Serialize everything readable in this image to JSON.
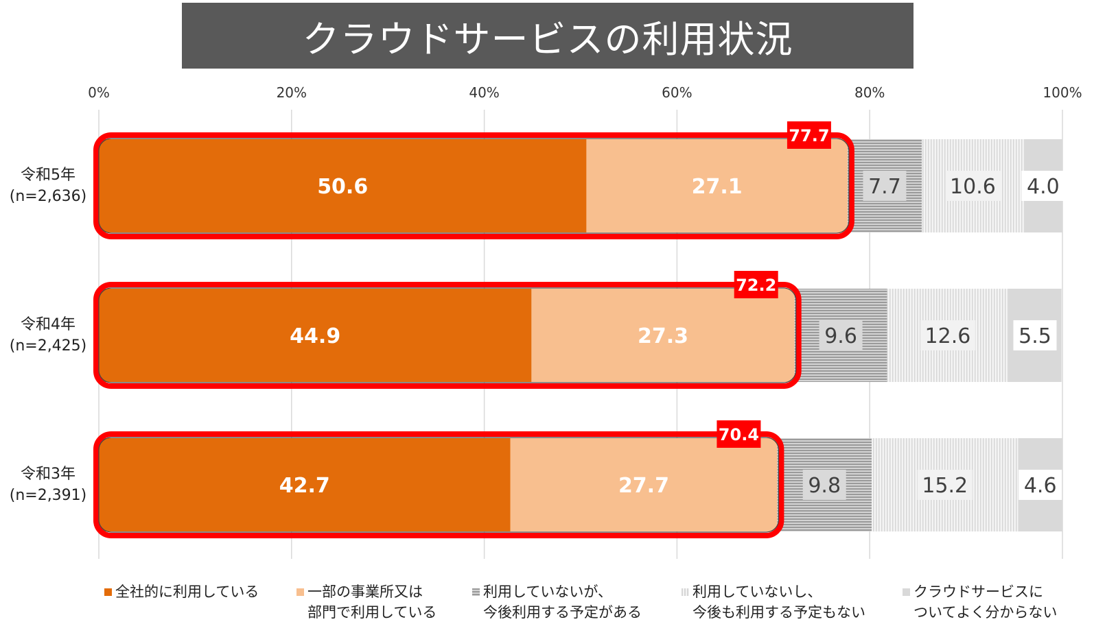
{
  "title": "クラウドサービスの利用状況",
  "chart_data": {
    "type": "bar",
    "stacked": true,
    "orientation": "horizontal",
    "xlim": [
      0,
      100
    ],
    "x_ticks": [
      "0%",
      "20%",
      "40%",
      "60%",
      "80%",
      "100%"
    ],
    "grid": true,
    "legend_position": "bottom",
    "categories": [
      {
        "line1": "令和5年",
        "line2": "(n=2,636)"
      },
      {
        "line1": "令和4年",
        "line2": "(n=2,425)"
      },
      {
        "line1": "令和3年",
        "line2": "(n=2,391)"
      }
    ],
    "series": [
      {
        "name": "全社的に利用している",
        "name_line1": "全社的に利用している",
        "name_line2": "",
        "color": "#e36c0a",
        "values": [
          50.6,
          44.9,
          42.7
        ]
      },
      {
        "name": "一部の事業所又は部門で利用している",
        "name_line1": "一部の事業所又は",
        "name_line2": "部門で利用している",
        "color": "#f8bf8f",
        "values": [
          27.1,
          27.3,
          27.7
        ]
      },
      {
        "name": "利用していないが、今後利用する予定がある",
        "name_line1": "利用していないが、",
        "name_line2": "今後利用する予定がある",
        "color": "#a6a6a6",
        "pattern": "horizontal-lines",
        "values": [
          7.7,
          9.6,
          9.8
        ]
      },
      {
        "name": "利用していないし、今後も利用する予定もない",
        "name_line1": "利用していないし、",
        "name_line2": "今後も利用する予定もない",
        "color": "#e0e0e0",
        "pattern": "vertical-lines",
        "values": [
          10.6,
          12.6,
          15.2
        ]
      },
      {
        "name": "クラウドサービスについてよく分からない",
        "name_line1": "クラウドサービスに",
        "name_line2": "ついてよく分からない",
        "color": "#d9d9d9",
        "values": [
          4.0,
          5.5,
          4.6
        ]
      }
    ],
    "highlight_totals": [
      "77.7",
      "72.2",
      "70.4"
    ],
    "highlight_color": "#ff0000"
  }
}
